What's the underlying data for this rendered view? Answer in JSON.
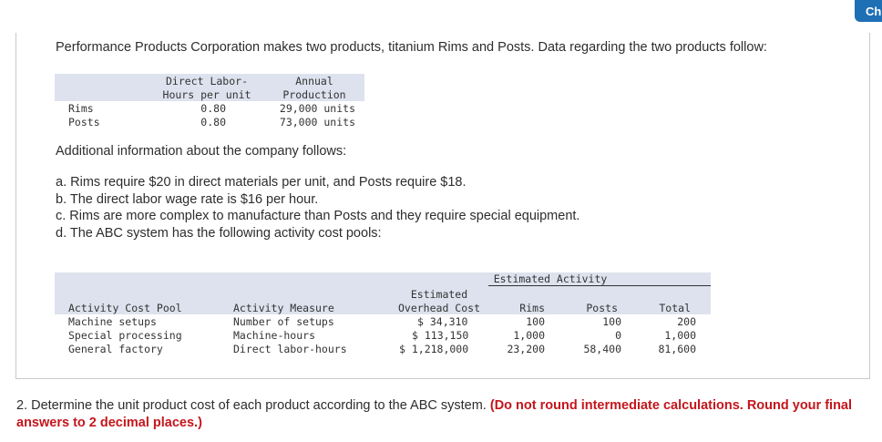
{
  "tab_label": "Ch",
  "intro": "Performance Products Corporation makes two products, titanium Rims and Posts. Data regarding the two products follow:",
  "product_table": {
    "headers": {
      "dl_line1": "Direct Labor-",
      "dl_line2": "Hours per unit",
      "ap_line1": "Annual",
      "ap_line2": "Production"
    },
    "rows": [
      {
        "name": "Rims",
        "hours": "0.80",
        "production": "29,000 units"
      },
      {
        "name": "Posts",
        "hours": "0.80",
        "production": "73,000 units"
      }
    ]
  },
  "additional_intro": "Additional information about the company follows:",
  "items": [
    "a. Rims require $20 in direct materials per unit, and Posts require $18.",
    "b. The direct labor wage rate is $16 per hour.",
    "c. Rims are more complex to manufacture than Posts and they require special equipment.",
    "d. The ABC system has the following activity cost pools:"
  ],
  "activity_table": {
    "group_header": "Estimated Activity",
    "headers": {
      "pool": "Activity Cost Pool",
      "measure": "Activity Measure",
      "overhead_line1": "Estimated",
      "overhead_line2": "Overhead Cost",
      "rims": "Rims",
      "posts": "Posts",
      "total": "Total"
    },
    "rows": [
      {
        "pool": "Machine setups",
        "measure": "Number of setups",
        "cost": "$ 34,310",
        "rims": "100",
        "posts": "100",
        "total": "200"
      },
      {
        "pool": "Special processing",
        "measure": "Machine-hours",
        "cost": "$ 113,150",
        "rims": "1,000",
        "posts": "0",
        "total": "1,000"
      },
      {
        "pool": "General factory",
        "measure": "Direct labor-hours",
        "cost": "$ 1,218,000",
        "rims": "23,200",
        "posts": "58,400",
        "total": "81,600"
      }
    ]
  },
  "question": {
    "text": "2. Determine the unit product cost of each product according to the ABC system. ",
    "emphasis": "(Do not round intermediate calculations. Round your final answers to 2 decimal places.)"
  },
  "colors": {
    "table_header_bg": "#dde2ee",
    "emphasis": "#c4161c",
    "tab": "#1f6fb5"
  }
}
